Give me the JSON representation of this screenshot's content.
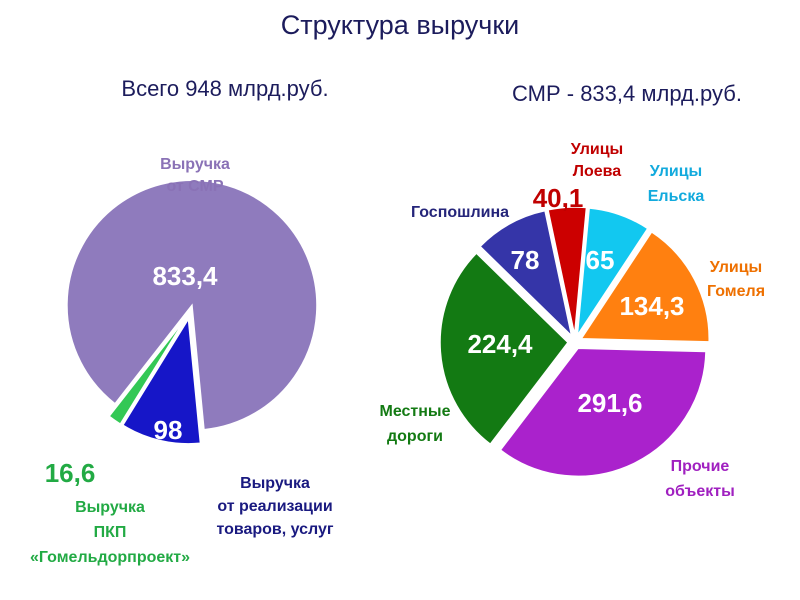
{
  "title": "Структура выручки",
  "chart_data": [
    {
      "type": "pie",
      "subtitle": "Всего 948 млрд.руб.",
      "categories": [
        [
          "Выручка",
          "от СМР"
        ],
        [
          "Выручка",
          "от реализации",
          "товаров, услуг"
        ],
        [
          "Выручка",
          "ПКП",
          "«Гомельдорпроект»"
        ]
      ],
      "values": [
        833.4,
        98,
        16.6
      ],
      "value_labels": [
        "833,4",
        "98",
        "16,6"
      ],
      "colors": [
        "#8f7bbd",
        "#1616c8",
        "#33c855"
      ]
    },
    {
      "type": "pie",
      "subtitle": "СМР - 833,4 млрд.руб.",
      "categories": [
        [
          "Улицы",
          "Лоева"
        ],
        [
          "Улицы",
          "Ельска"
        ],
        [
          "Улицы",
          "Гомеля"
        ],
        [
          "Прочие",
          "объекты"
        ],
        [
          "Местные",
          "дороги"
        ],
        [
          "Госпошлина"
        ]
      ],
      "values": [
        40.1,
        65,
        134.3,
        291.6,
        224.4,
        78
      ],
      "value_labels": [
        "40,1",
        "65",
        "134,3",
        "291,6",
        "224,4",
        "78"
      ],
      "colors": [
        "#cc0000",
        "#12c8f0",
        "#ff8010",
        "#aa22cc",
        "#137a13",
        "#3535a8"
      ]
    }
  ]
}
